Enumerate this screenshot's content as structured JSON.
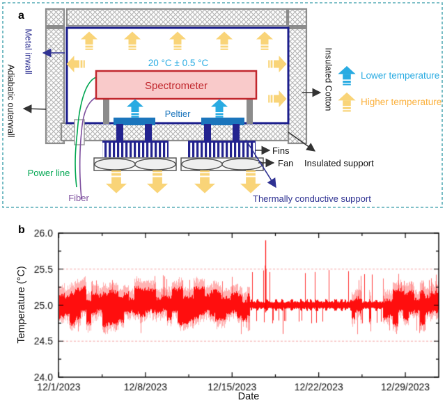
{
  "panel_a": {
    "label": "a",
    "setpoint": "20 °C ± 0.5 °C",
    "spectrometer": "Spectrometer",
    "peltier": "Peltier",
    "labels": {
      "metal_inwall": "Metal inwall",
      "adiabatic_outerwall": "Adiabatic outerwall",
      "insulated_cotton": "Insulated Cotton",
      "fins": "Fins",
      "fan": "Fan",
      "insulated_support": "Insulated support",
      "thermally_conductive_support": "Thermally conductive support",
      "power_line": "Power line",
      "fiber": "Fiber"
    },
    "legend": {
      "lower": "Lower temperature",
      "higher": "Higher temperature"
    },
    "colors": {
      "cold_cyan": "#29abe2",
      "hot_yellow": "#f9d478",
      "hot_text": "#fbb03b",
      "inwall_blue": "#1b1e8c",
      "navy": "#23238f",
      "label_navy": "#2e3192",
      "peltier_blue": "#1b75bc",
      "spectrometer_fill": "#f9caca",
      "spectrometer_red": "#c1272d",
      "wall_gray": "#8c8c8c",
      "power_green": "#00a651",
      "fiber_purple": "#7d4f9e",
      "border_teal": "#55abb5"
    }
  },
  "panel_b": {
    "label": "b"
  },
  "chart_data": {
    "type": "line",
    "xlabel": "Date",
    "ylabel": "Temperature (°C)",
    "x_tick_labels": [
      "12/1/2023",
      "12/8/2023",
      "12/15/2023",
      "12/22/2023",
      "12/29/2023"
    ],
    "x_tick_days": [
      0,
      7,
      14,
      21,
      28
    ],
    "x_minor_step_days": 3.5,
    "x_range_days": [
      0,
      30.67
    ],
    "ylim": [
      24.0,
      26.0
    ],
    "yticks": [
      24.0,
      24.5,
      25.0,
      25.5,
      26.0
    ],
    "y_minor_step": 0.25,
    "series": [
      {
        "name": "Temperature",
        "color": "#ff0000"
      }
    ],
    "reference_lines": {
      "values": [
        24.5,
        25.5
      ],
      "style": "dashed",
      "color": "#f5a3a3"
    },
    "mean_c": 25.0,
    "segments": [
      {
        "start_day": 0,
        "end_day": 15.4,
        "pattern": "dense",
        "core": [
          24.7,
          25.25
        ],
        "extremes": [
          24.55,
          25.45
        ]
      },
      {
        "start_day": 15.4,
        "end_day": 23.5,
        "pattern": "narrow",
        "core": [
          24.93,
          25.07
        ],
        "extremes": [
          24.6,
          25.5
        ],
        "spike": {
          "day": 16.7,
          "peak": 25.9
        }
      },
      {
        "start_day": 23.5,
        "end_day": 26.2,
        "pattern": "mixed",
        "core": [
          24.85,
          25.15
        ],
        "extremes": [
          24.55,
          25.5
        ]
      },
      {
        "start_day": 26.2,
        "end_day": 30.67,
        "pattern": "dense",
        "core": [
          24.7,
          25.3
        ],
        "extremes": [
          24.55,
          25.5
        ]
      }
    ]
  }
}
